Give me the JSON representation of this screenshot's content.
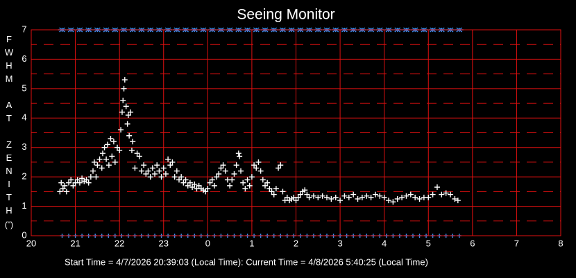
{
  "chart_data": {
    "type": "scatter",
    "title": "Seeing Monitor",
    "y_label": "FWHM AT ZENITH",
    "y_unit": "(\")",
    "footer": "Start Time = 4/7/2026 20:39:03 (Local Time):  Current Time = 4/8/2026 5:40:25 (Local Time)",
    "xlim": [
      20,
      32
    ],
    "xticks": [
      20,
      21,
      22,
      23,
      {
        "value": 24,
        "label": "0"
      },
      {
        "value": 25,
        "label": "1"
      },
      {
        "value": 26,
        "label": "2"
      },
      {
        "value": 27,
        "label": "3"
      },
      {
        "value": 28,
        "label": "4"
      },
      {
        "value": 29,
        "label": "5"
      },
      {
        "value": 30,
        "label": "6"
      },
      {
        "value": 31,
        "label": "7"
      },
      {
        "value": 32,
        "label": "8"
      }
    ],
    "ylim": [
      0,
      7
    ],
    "yticks": [
      0,
      1,
      2,
      3,
      4,
      5,
      6,
      7
    ],
    "y_minor_ticks": [
      0.5,
      1.5,
      2.5,
      3.5,
      4.5,
      5.5,
      6.5
    ],
    "grid": true,
    "grid_color": "#e01010",
    "series": [
      {
        "color": "#ffffff",
        "marker": "plus",
        "x": [
          20.65,
          20.68,
          20.72,
          20.76,
          20.8,
          20.85,
          20.9,
          20.95,
          21.0,
          21.05,
          21.1,
          21.15,
          21.2,
          21.25,
          21.3,
          21.35,
          21.4,
          21.43,
          21.47,
          21.5,
          21.55,
          21.6,
          21.62,
          21.66,
          21.7,
          21.73,
          21.76,
          21.8,
          21.83,
          21.87,
          21.9,
          21.95,
          22.0,
          22.03,
          22.06,
          22.08,
          22.1,
          22.12,
          22.15,
          22.18,
          22.2,
          22.22,
          22.25,
          22.28,
          22.3,
          22.35,
          22.4,
          22.45,
          22.5,
          22.55,
          22.6,
          22.65,
          22.7,
          22.75,
          22.8,
          22.85,
          22.9,
          22.95,
          23.0,
          23.05,
          23.1,
          23.15,
          23.2,
          23.25,
          23.3,
          23.35,
          23.4,
          23.45,
          23.5,
          23.55,
          23.6,
          23.65,
          23.7,
          23.75,
          23.8,
          23.85,
          23.9,
          23.95,
          24.0,
          24.05,
          24.1,
          24.15,
          24.2,
          24.25,
          24.3,
          24.35,
          24.4,
          24.45,
          24.5,
          24.55,
          24.6,
          24.65,
          24.7,
          24.72,
          24.75,
          24.8,
          24.85,
          24.9,
          24.95,
          25.0,
          25.05,
          25.1,
          25.15,
          25.2,
          25.25,
          25.3,
          25.35,
          25.4,
          25.45,
          25.5,
          25.55,
          25.6,
          25.65,
          25.7,
          25.75,
          25.8,
          25.85,
          25.9,
          25.95,
          26.0,
          26.05,
          26.1,
          26.15,
          26.2,
          26.25,
          26.3,
          26.4,
          26.5,
          26.6,
          26.7,
          26.8,
          26.9,
          27.0,
          27.1,
          27.2,
          27.3,
          27.4,
          27.5,
          27.6,
          27.7,
          27.8,
          27.9,
          28.0,
          28.1,
          28.2,
          28.3,
          28.4,
          28.5,
          28.6,
          28.7,
          28.8,
          28.9,
          29.0,
          29.1,
          29.2,
          29.3,
          29.4,
          29.5,
          29.6,
          29.67
        ],
        "values": [
          1.5,
          1.8,
          1.6,
          1.7,
          1.5,
          1.8,
          1.9,
          1.7,
          1.8,
          1.9,
          1.8,
          1.95,
          1.85,
          1.9,
          1.8,
          2.0,
          2.2,
          2.5,
          2.0,
          2.4,
          2.6,
          2.3,
          2.8,
          3.0,
          2.6,
          3.1,
          2.4,
          3.3,
          2.7,
          3.2,
          2.5,
          3.0,
          2.9,
          3.6,
          4.2,
          4.6,
          5.0,
          5.3,
          4.4,
          3.8,
          4.1,
          3.4,
          4.2,
          2.9,
          3.2,
          2.3,
          2.8,
          2.7,
          2.2,
          2.4,
          2.1,
          2.2,
          2.0,
          2.3,
          2.1,
          2.4,
          2.2,
          2.0,
          2.3,
          2.1,
          2.6,
          2.4,
          2.5,
          2.0,
          2.2,
          1.9,
          2.0,
          1.8,
          1.9,
          1.7,
          1.8,
          1.65,
          1.75,
          1.6,
          1.7,
          1.6,
          1.55,
          1.5,
          1.6,
          1.8,
          1.9,
          1.7,
          2.0,
          2.1,
          2.3,
          2.4,
          2.2,
          1.9,
          1.7,
          1.9,
          2.1,
          2.4,
          2.8,
          2.7,
          2.2,
          1.8,
          1.6,
          1.9,
          1.7,
          2.0,
          2.4,
          2.3,
          2.5,
          2.2,
          1.9,
          1.7,
          1.8,
          1.6,
          1.5,
          1.4,
          1.6,
          2.3,
          2.4,
          1.5,
          1.2,
          1.3,
          1.2,
          1.25,
          1.3,
          1.2,
          1.3,
          1.4,
          1.5,
          1.55,
          1.4,
          1.3,
          1.35,
          1.3,
          1.35,
          1.3,
          1.25,
          1.3,
          1.2,
          1.35,
          1.3,
          1.4,
          1.25,
          1.3,
          1.35,
          1.3,
          1.4,
          1.35,
          1.3,
          1.2,
          1.15,
          1.25,
          1.3,
          1.35,
          1.4,
          1.3,
          1.25,
          1.3,
          1.3,
          1.4,
          1.65,
          1.4,
          1.45,
          1.4,
          1.25,
          1.2
        ]
      },
      {
        "color": "#3a8df0",
        "marker": "asterisk",
        "x": [
          20.7,
          20.9,
          21.1,
          21.3,
          21.5,
          21.7,
          21.9,
          22.1,
          22.3,
          22.5,
          22.7,
          22.9,
          23.1,
          23.3,
          23.5,
          23.7,
          23.9,
          24.1,
          24.3,
          24.5,
          24.7,
          24.9,
          25.1,
          25.3,
          25.5,
          25.7,
          25.9,
          26.1,
          26.3,
          26.5,
          26.7,
          26.9,
          27.1,
          27.3,
          27.5,
          27.7,
          27.9,
          28.1,
          28.3,
          28.5,
          28.7,
          28.9,
          29.1,
          29.3,
          29.5,
          29.7
        ],
        "values": [
          7,
          7,
          7,
          7,
          7,
          7,
          7,
          7,
          7,
          7,
          7,
          7,
          7,
          7,
          7,
          7,
          7,
          7,
          7,
          7,
          7,
          7,
          7,
          7,
          7,
          7,
          7,
          7,
          7,
          7,
          7,
          7,
          7,
          7,
          7,
          7,
          7,
          7,
          7,
          7,
          7,
          7,
          7,
          7,
          7,
          7
        ]
      },
      {
        "color": "#3a8df0",
        "marker": "plus-small",
        "x": [
          20.7,
          20.85,
          21.0,
          21.15,
          21.3,
          21.45,
          21.6,
          21.75,
          21.9,
          22.05,
          22.2,
          22.35,
          22.5,
          22.65,
          22.8,
          22.95,
          23.1,
          23.25,
          23.4,
          23.55,
          23.7,
          23.85,
          24.0,
          24.15,
          24.3,
          24.45,
          24.6,
          24.75,
          24.9,
          25.05,
          25.2,
          25.35,
          25.5,
          25.65,
          25.8,
          25.95,
          26.1,
          26.25,
          26.4,
          26.55,
          26.7,
          26.85,
          27.0,
          27.15,
          27.3,
          27.45,
          27.6,
          27.75,
          27.9,
          28.05,
          28.2,
          28.35,
          28.5,
          28.65,
          28.8,
          28.95,
          29.1,
          29.25,
          29.4,
          29.55,
          29.7
        ],
        "values": [
          0,
          0,
          0,
          0,
          0,
          0,
          0,
          0,
          0,
          0,
          0,
          0,
          0,
          0,
          0,
          0,
          0,
          0,
          0,
          0,
          0,
          0,
          0,
          0,
          0,
          0,
          0,
          0,
          0,
          0,
          0,
          0,
          0,
          0,
          0,
          0,
          0,
          0,
          0,
          0,
          0,
          0,
          0,
          0,
          0,
          0,
          0,
          0,
          0,
          0,
          0,
          0,
          0,
          0,
          0,
          0,
          0,
          0,
          0,
          0,
          0
        ]
      }
    ]
  }
}
